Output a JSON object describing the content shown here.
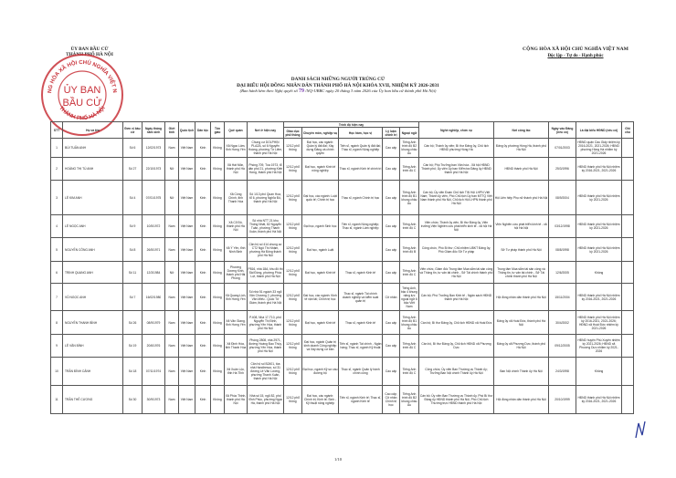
{
  "header": {
    "org_line1": "ỦY BAN BẦU CỬ",
    "org_line2": "THÀNH PHỐ HÀ NỘI",
    "nation": "CỘNG HÒA XÃ HỘI CHỦ NGHĨA VIỆT NAM",
    "motto": "Độc lập - Tự do - Hạnh phúc"
  },
  "stamp": {
    "center_line1": "ỦY BAN",
    "center_line2": "BẦU CỬ",
    "ring_top": "CỘNG HÒA XÃ HỘI CHỦ NGHĨA VIỆT NAM",
    "ring_bottom": "THÀNH PHỐ HÀ NỘI",
    "color": "#c8323a"
  },
  "title": {
    "line1": "DANH SÁCH NHỮNG NGƯỜI TRÚNG CỬ",
    "line2": "ĐẠI BIỂU HỘI ĐỒNG NHÂN DÂN THÀNH PHỐ HÀ NỘI KHÓA XVII, NHIỆM KỲ 2026-2031",
    "sub_before": "(Ban hành kèm theo Nghị quyết số",
    "resolution_number": "79",
    "sub_after": "/NQ-UBBC ngày 20 tháng 3 năm 2026 của Ủy ban bầu cử thành phố Hà Nội)"
  },
  "table": {
    "headers": {
      "stt": "STT",
      "name": "Họ và tên",
      "unit": "Đơn vị bầu cử",
      "dob": "Ngày tháng năm sinh",
      "gender": "Giới tính",
      "nationality": "Quốc tịch",
      "ethnicity": "Dân tộc",
      "religion": "Tôn giáo",
      "hometown": "Quê quán",
      "residence": "Nơi ở hiện nay",
      "education_group": "Trình độ hiện nay",
      "general_edu": "Giáo dục phổ thông",
      "specialty": "Chuyên môn, nghiệp vụ",
      "degree": "Học hàm, học vị",
      "politics": "Lý luận chính trị",
      "language": "Ngoại ngữ",
      "occupation": "Nghề nghiệp, chức vụ",
      "workplace": "Nơi công tác",
      "party_date": "Ngày vào Đảng (nếu có)",
      "delegate": "Là đại biểu HĐND (nếu có)",
      "note": "Ghi chú"
    },
    "rows": [
      [
        "1",
        "BÙI TUẤN ANH",
        "Số 6",
        "12/02/1973",
        "Nam",
        "Việt Nam",
        "Kinh",
        "Không",
        "Xã Ngọc Lâm, tỉnh Hưng Yên",
        "Chung cư DOLPHIN PLAZA, số 6 Nguyễn Hoàng, phường Từ Liêm, thành phố Hà Nội",
        "12/12 phổ thông",
        "Đại học, các ngành: Quản lý đất đai; Xây dựng Đảng và chính quyền",
        "Tiến sĩ, ngành Quản lý đất đai; Thạc sĩ, ngành Nông nghiệp",
        "Cao cấp",
        "Tiếng Anh trình độ B2 khung châu Âu",
        "Cán bộ; Thành ủy viên; Bí thư Đảng ủy, Chủ tịch HĐND phường Hồng Hà",
        "Đảng ủy phường Hồng Hà, thành phố Hà Nội",
        "07/01/2003",
        "HĐND quận Cầu Giấy nhiệm kỳ 2016-2021, 2021-2026; HĐND phường Hồng Hà nhiệm kỳ 2021-2026",
        ""
      ],
      [
        "2",
        "HOÀNG THỊ TÚ ANH",
        "Số 27",
        "22/10/1973",
        "Nữ",
        "Việt Nam",
        "Kinh",
        "Không",
        "Xã Hát Môn, thành phố Hà Nội",
        "Phòng 709, Tòa 1973, tổ dân phố 21, phường Kiến Hưng, thành phố Hà Nội",
        "12/12 phổ thông",
        "Đại học, ngành Kinh tế nông nghiệp",
        "Thạc sĩ, ngành Kinh tế chính trị",
        "Cao cấp",
        "Tiếng Anh trình độ C",
        "Cán bộ; Phó Trưởng ban Văn hóa - Xã hội HĐND Thành phố; Ủy viên Ủy ban Kiểm tra Đảng ủy HĐND thành phố Hà Nội",
        "HĐND thành phố Hà Nội",
        "25/3/1996",
        "HĐND thành phố Hà Nội nhiệm kỳ 2016-2021, 2021-2026",
        ""
      ],
      [
        "3",
        "LÊ KIM ANH",
        "Số 4",
        "07/01/1975",
        "Nữ",
        "Việt Nam",
        "Kinh",
        "Không",
        "Xã Công Chính, tỉnh Thanh Hóa",
        "Số 1/13 phố Quan Hoa, tổ 6, phường Nghĩa Đô, thành phố Hà Nội",
        "12/12 phổ thông",
        "Đại học, các ngành: Luật quốc tế; Chính trị học",
        "Thạc sĩ, ngành Chính trị học",
        "Cao cấp",
        "Tiếng Anh trình độ B1 khung châu Âu",
        "Cán bộ; Ủy viên Đoàn Chủ tịch TW Hội LHPN Việt Nam; Thành ủy viên, Phó Chủ tịch Ủy ban MTTQ Việt Nam thành phố Hà Nội, Chủ tịch Hội LHPN thành phố Hà Nội",
        "Hội Liên hiệp Phụ nữ thành phố Hà Nội",
        "08/9/2004",
        "HĐND thành phố Hà Nội nhiệm kỳ 2021-2026",
        ""
      ],
      [
        "4",
        "LÊ NGỌC ANH",
        "Số 9",
        "10/5/1972",
        "Nam",
        "Việt Nam",
        "Kinh",
        "Không",
        "Xã Cổ Đô, thành phố Hà Nội",
        "Số nhà NTT 21 khu Thống Nhất, 82 Nguyễn Tuân, phường Thanh Xuân, thành phố Hà Nội",
        "12/12 phổ thông",
        "Đại học, ngành Sinh học",
        "Tiến sĩ, ngành Nông nghiệp; Thạc sĩ, ngành Lâm nghiệp",
        "Cao cấp",
        "Tiếng Anh trình độ C",
        "Viên chức; Thành ủy viên, Bí thư Đảng ủy, Viện trưởng Viện Nghiên cứu phát triển kinh tế - xã hội Hà Nội",
        "Viện Nghiên cứu phát triển kinh tế - xã hội Hà Nội",
        "03/12/1998",
        "HĐND thành phố Hà Nội nhiệm kỳ 2021-2026",
        ""
      ],
      [
        "5",
        "NGUYỄN CÔNG ANH",
        "Số 8",
        "26/5/1971",
        "Nam",
        "Việt Nam",
        "Kinh",
        "Không",
        "Xã Ý Yên, tỉnh Ninh Bình",
        "Căn hộ số 414 chung cư CT2 Ngô Thì Nhậm, phường Hà Đông thành phố Hà Nội",
        "12/12 phổ thông",
        "Đại học, ngành Luật",
        "",
        "Cao cấp",
        "Tiếng Anh trình độ B",
        "Công chức, Phó Bí thư; Chủ nhiệm UBKT Đảng ủy; Phó Giám đốc Sở Tư pháp",
        "Sở Tư pháp thành phố Hà Nội",
        "08/8/1998",
        "HĐND thành phố Hà Nội nhiệm kỳ 2021-2026",
        ""
      ],
      [
        "6",
        "TRỊNH QUANG ANH",
        "Số 11",
        "12/3/1984",
        "Nữ",
        "Việt Nam",
        "Kinh",
        "Không",
        "Phường Dương Kinh, thành phố Hải Phòng",
        "P816, nhà 18A, khu đô thị Sài Đồng, phường Phúc Lợi, thành phố Hà Nội",
        "12/12 phổ thông",
        "Đại học, ngành Kinh tế",
        "Thạc sĩ, ngành Kinh tế",
        "Cao cấp",
        "Tiếng Anh trình độ C",
        "Viên chức, Giám đốc Trung tâm Mua sắm tài sản công và Thông tin, tư vấn tài chính - Sở Tài chính thành phố Hà Nội",
        "Trung tâm Mua sắm tài sản công và Thông tin, tư vấn tài chính - Sở Tài chính thành phố Hà Nội",
        "12/6/2005",
        "Không",
        ""
      ],
      [
        "7",
        "VŨ NGỌC ANH",
        "Số 7",
        "16/02/1980",
        "Nam",
        "Việt Nam",
        "Kinh",
        "Không",
        "Xã Quang Lịch, tỉnh Hưng Yên",
        "Số nhà 51 ngách 33 ngõ Văn Chương 2, phường Văn Miếu - Quốc Tử Giám, thành phố Hà Nội",
        "12/12 phổ thông",
        "Đại học, các ngành: Kinh tế vận tải; Chính trị học",
        "Thạc sĩ, ngành Tài chính doanh nghiệp và kiểm soát quản trị",
        "Cử nhân",
        "Tiếng Anh, bậc 4 khung năng lực ngoại ngữ 6 bậc Việt Nam",
        "Cán bộ; Phó Trưởng Ban Kinh tế - Ngân sách HĐND thành phố Hà Nội",
        "Hội đồng nhân dân thành phố Hà Nội",
        "15/11/2004",
        "HĐND thành phố Hà Nội nhiệm kỳ 2016-2021, 2021-2026",
        ""
      ],
      [
        "8",
        "NGUYỄN THANH BÌNH",
        "Số 26",
        "08/9/1979",
        "Nam",
        "Việt Nam",
        "Kinh",
        "Không",
        "Xã Văn Giang, tỉnh Hưng Yên",
        "P.408, Nhà 17-T10, phố Nguyễn Thị Định, phường Yên Hòa, thành phố Hà Nội",
        "12/12 phổ thông",
        "Đại học, ngành Kinh tế",
        "Thạc sĩ, ngành Kinh tế",
        "Cao cấp",
        "Tiếng Anh trình độ B1 khung châu Âu",
        "Cán bộ; Bí thư Đảng ủy, Chủ tịch HĐND xã Hoài Đức",
        "Đảng ủy xã Hoài Đức, thành phố Hà Nội",
        "30/4/2002",
        "HĐND thành phố Hà Nội nhiệm kỳ 2016-2021, 2021-2026; HĐND xã Hoài Đức nhiệm kỳ 2021-2026",
        ""
      ],
      [
        "9",
        "LÊ VĂN BÌNH",
        "Số 19",
        "20/6/1976",
        "Nam",
        "Việt Nam",
        "Kinh",
        "Không",
        "Xã Định Hòa, tỉnh Thanh Hóa",
        "Phòng 2808, nhà 2971, đường Hoàng Đạo Thúy, phường Yên Hòa, thành phố Hà Nội",
        "12/12 phổ thông",
        "Đại học, ngành Quản trị kinh doanh Công nghiệp và Xây dựng cơ bản",
        "Tiến sĩ, ngành Tài chính - Ngân hàng; Thạc sĩ, ngành Kỹ thuật",
        "Cao cấp",
        "Tiếng Anh trình độ C",
        "Cán bộ, Bí thư Đảng ủy, Chủ tịch HĐND xã Phượng Dực",
        "Đảng ủy xã Phượng Dực, thành phố Hà Nội",
        "09/12/2005",
        "HĐND huyện Phú Xuyên nhiệm kỳ 2021-2026; HĐND xã Phượng Dực nhiệm kỳ 2021-2026",
        ""
      ],
      [
        "10",
        "TRẦN ĐÌNH CẢNH",
        "Số 18",
        "07/11/1974",
        "Nam",
        "Việt Nam",
        "Kinh",
        "Không",
        "Xã Xuân Lộc, tỉnh Hà Tĩnh",
        "Căn hộ số B2401, tòa nhà Handiresco, số 31 đường Lê Văn Lương, phường Thanh Xuân, thành phố Hà Nội",
        "12/12 phổ thông",
        "Đại học, ngành Kỹ sư cầu đường bộ",
        "Thạc sĩ, ngành Quản lý hành chính công",
        "Cao cấp",
        "Tiếng Anh trình độ C",
        "Công chức; Ủy viên Ban Thường vụ Thành ủy; Trưởng Ban Nội chính Thành ủy Hà Nội",
        "Ban Nội chính Thành ủy Hà Nội",
        "24/3/1998",
        "Không",
        ""
      ],
      [
        "11",
        "TRẦN THẾ CƯƠNG",
        "Số 30",
        "30/9/1973",
        "Nam",
        "Việt Nam",
        "Kinh",
        "Không",
        "Xã Phúc Thịnh, thành phố Hà Nội",
        "Nhà số 15, ngõ 82, phố Vĩnh Phúc, phường Ngọc Hà, thành phố Hà Nội",
        "12/12 phổ thông",
        "Đại học, các ngành: Chính trị; Kinh tế; Sinh - Kỹ thuật nông nghiệp",
        "Tiến sĩ, ngành Kinh tế; Thạc sĩ, ngành Kinh tế",
        "Cao cấp; Cử nhân Chính trị học",
        "Tiếng Anh trình độ B2 khung châu Âu",
        "Cán bộ; Ủy viên Ban Thường vụ Thành ủy, Phó Bí thư Đảng ủy HĐND thành phố Hà Nội, Phó Chủ tịch Thường trực HĐND thành phố Hà Nội",
        "Hội đồng nhân dân thành phố Hà Nội",
        "20/10/1999",
        "HĐND thành phố Hà Nội nhiệm kỳ 2016-2021, 2021-2026",
        ""
      ]
    ]
  },
  "footer": {
    "page": "1/10"
  }
}
